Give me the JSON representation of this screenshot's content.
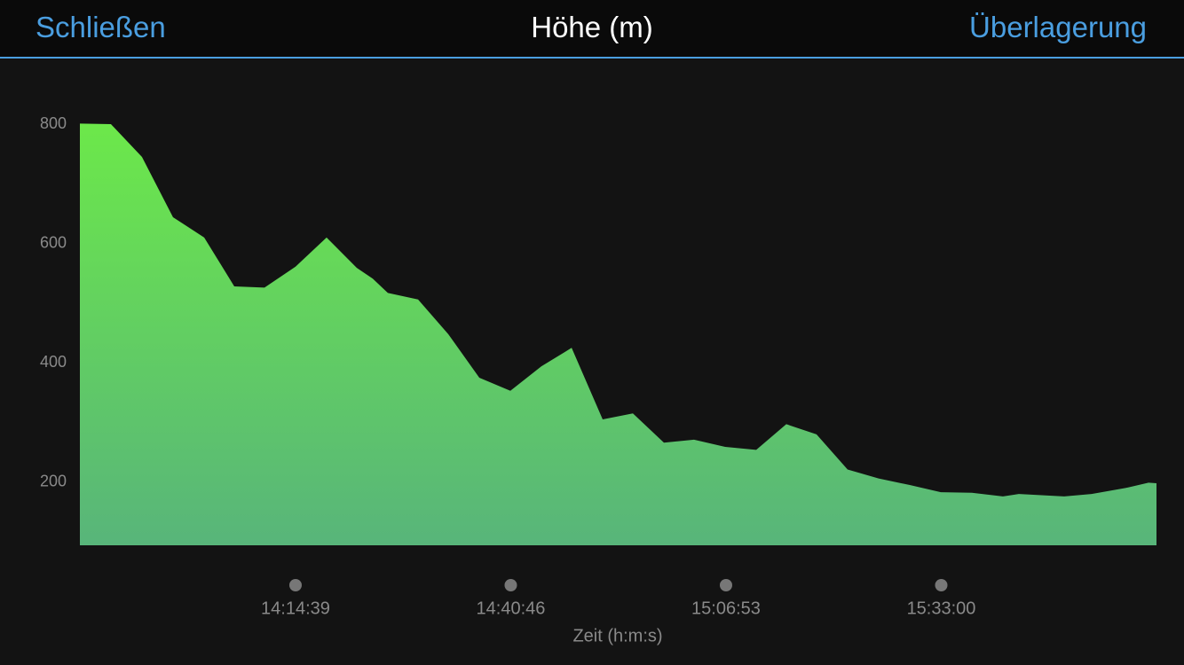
{
  "header": {
    "left_button": "Schließen",
    "title": "Höhe (m)",
    "right_button": "Überlagerung"
  },
  "chart_data": {
    "type": "area",
    "x_label": "Zeit (h:m:s)",
    "color": "#6ce84a",
    "x": [
      49709,
      49935,
      50161,
      50387,
      50614,
      50833,
      51053,
      51279,
      51505,
      51725,
      51841,
      51951,
      52171,
      52391,
      52617,
      52843,
      53069,
      53289,
      53515,
      53735,
      53961,
      54180,
      54407,
      54633,
      54852,
      55072,
      55298,
      55524,
      55751,
      55977,
      56203,
      56429,
      56545,
      56875,
      57075,
      57321,
      57489,
      57547
    ],
    "values": [
      801,
      800,
      745,
      644,
      610,
      528,
      526,
      561,
      610,
      559,
      541,
      517,
      506,
      448,
      375,
      353,
      394,
      425,
      305,
      315,
      266,
      271,
      259,
      254,
      297,
      280,
      221,
      206,
      195,
      183,
      182,
      176,
      180,
      176,
      180,
      190,
      199,
      198
    ],
    "xlim": [
      49709,
      57547
    ],
    "xticks": [
      {
        "value": 51279,
        "label": "14:14:39"
      },
      {
        "value": 52846,
        "label": "14:40:46"
      },
      {
        "value": 54413,
        "label": "15:06:53"
      },
      {
        "value": 55980,
        "label": "15:33:00"
      }
    ],
    "ylim": [
      94,
      800
    ],
    "yticks": [
      200,
      400,
      600,
      800
    ]
  }
}
